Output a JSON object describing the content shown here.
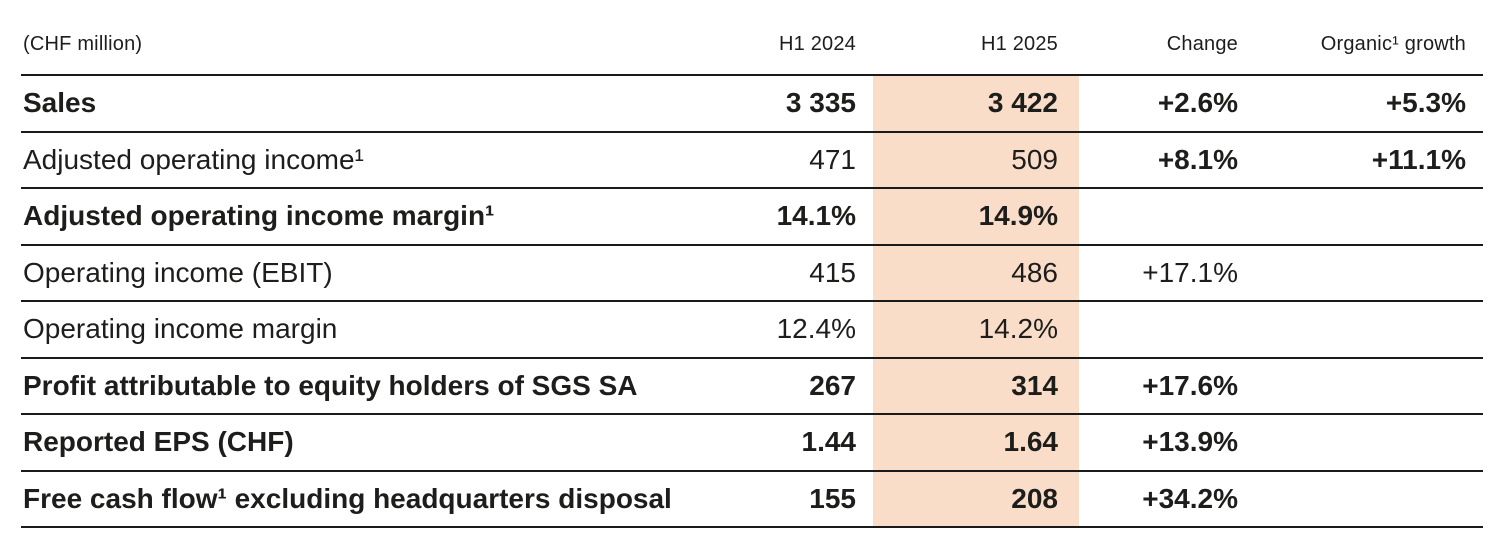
{
  "colors": {
    "highlight_band": "#f9ddc9",
    "rule": "#1a1a1a",
    "text": "#1d1d1b",
    "background": "#ffffff"
  },
  "table": {
    "unit_label": "(CHF million)",
    "columns": {
      "h1_2024": "H1 2024",
      "h1_2025": "H1 2025",
      "change": "Change",
      "organic_growth": "Organic¹ growth"
    },
    "highlighted_column": "H1 2025",
    "rows": [
      {
        "label": "Sales",
        "h1_2024": "3 335",
        "h1_2025": "3 422",
        "change": "+2.6%",
        "organic_growth": "+5.3%"
      },
      {
        "label": "Adjusted operating income¹",
        "h1_2024": "471",
        "h1_2025": "509",
        "change": "+8.1%",
        "organic_growth": "+11.1%"
      },
      {
        "label": "Adjusted operating income margin¹",
        "h1_2024": "14.1%",
        "h1_2025": "14.9%",
        "change": "",
        "organic_growth": ""
      },
      {
        "label": "Operating income (EBIT)",
        "h1_2024": "415",
        "h1_2025": "486",
        "change": "+17.1%",
        "organic_growth": ""
      },
      {
        "label": "Operating income margin",
        "h1_2024": "12.4%",
        "h1_2025": "14.2%",
        "change": "",
        "organic_growth": ""
      },
      {
        "label": "Profit attributable to equity holders of SGS SA",
        "h1_2024": "267",
        "h1_2025": "314",
        "change": "+17.6%",
        "organic_growth": ""
      },
      {
        "label": "Reported EPS (CHF)",
        "h1_2024": "1.44",
        "h1_2025": "1.64",
        "change": "+13.9%",
        "organic_growth": ""
      },
      {
        "label": "Free cash flow¹ excluding headquarters disposal",
        "h1_2024": "155",
        "h1_2025": "208",
        "change": "+34.2%",
        "organic_growth": ""
      }
    ]
  }
}
